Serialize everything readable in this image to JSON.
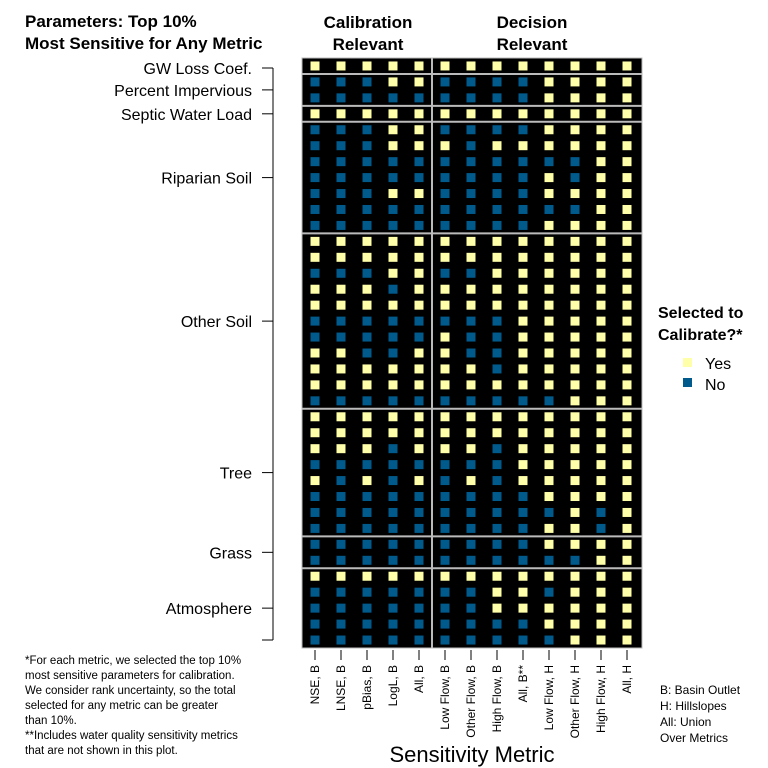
{
  "chart_data": {
    "type": "heatmap",
    "title": "Parameters: Top 10% Most Sensitive for Any Metric",
    "title_lines": [
      "Parameters: Top 10%",
      "Most Sensitive for Any Metric"
    ],
    "xlabel": "Sensitivity Metric",
    "column_groups": [
      {
        "label_lines": [
          "Calibration",
          "Relevant"
        ],
        "columns": 5
      },
      {
        "label_lines": [
          "Decision",
          "Relevant"
        ],
        "columns": 8
      }
    ],
    "columns": [
      "NSE, B",
      "LNSE, B",
      "pBias, B",
      "LogL, B",
      "All, B",
      "Low Flow, B",
      "Other Flow, B",
      "High Flow, B",
      "All, B**",
      "Low Flow, H",
      "Other Flow, H",
      "High Flow, H",
      "All, H"
    ],
    "row_groups": [
      {
        "label": "GW Loss Coef.",
        "rows": [
          "YYYYYYYYYYYYY"
        ]
      },
      {
        "label": "Percent Impervious",
        "rows": [
          "NNNYYNNNNYYYY",
          "NNNNNNNNNYYYY"
        ]
      },
      {
        "label": "Septic Water Load",
        "rows": [
          "YYYYYYYYYYYYY"
        ]
      },
      {
        "label": "Riparian Soil",
        "rows": [
          "NNNYYNNNNYYYY",
          "NNNYYYNYYYYYY",
          "NNNNNNNNNNNYY",
          "NNNNNNNNNYNYY",
          "NNNYYNNNNYYYY",
          "NNNNNNNNNNNYY",
          "NNNNNNNNNYYYY"
        ]
      },
      {
        "label": "Other Soil",
        "rows": [
          "YYYYYYYYYYYYY",
          "YYYYYYYYYYYYY",
          "NNNYYNNYYYYYY",
          "YYYNYYYYYYYYY",
          "YYYYYYYYYYYYY",
          "NNNNNNNNYYYYY",
          "NNNNNYNNYYYYY",
          "YYNNYYNNYYYYY",
          "YYYYYYYNYYYYY",
          "YYYYYYYYYYYYY",
          "NNNNNNNNNNYYY"
        ]
      },
      {
        "label": "Tree",
        "rows": [
          "YYYYYYYYYYYYY",
          "YYYYYYYYYYYYY",
          "YYYNYYYNYYYYY",
          "NNNNNNNNYYYYY",
          "YNYNYNYNYYYYY",
          "NNNNNNNNNYYYY",
          "NNNNNNNNNNYNY",
          "NNNNNNNNNYYNY"
        ]
      },
      {
        "label": "Grass",
        "rows": [
          "NNNNNNNNNYYYY",
          "NNNNNNNNNNNYY"
        ]
      },
      {
        "label": "Atmosphere",
        "rows": [
          "YYYYYYYYYYYYY",
          "NNNNNNNYYNYYY",
          "NNNNNNNYYYYYY",
          "NNNNNNNNNYYYY",
          "NNNNNNNNNNYYY"
        ]
      }
    ],
    "legend": {
      "title_lines": [
        "Selected to",
        "Calibrate?*"
      ],
      "items": [
        {
          "key": "Y",
          "label": "Yes",
          "color": "#FFFFAA"
        },
        {
          "key": "N",
          "label": "No",
          "color": "#005A8C"
        }
      ],
      "placement": "right"
    },
    "background_color": "#000000"
  },
  "footnote_lines": [
    "*For each metric, we selected the top 10%",
    "most sensitive parameters for calibration.",
    "We consider rank uncertainty, so the total",
    "selected for any metric can be greater",
    "than 10%.",
    "**Includes water quality sensitivity metrics",
    "that are not shown in this plot."
  ],
  "key_note_lines": [
    "B: Basin Outlet",
    "H: Hillslopes",
    "All: Union",
    "Over Metrics"
  ]
}
